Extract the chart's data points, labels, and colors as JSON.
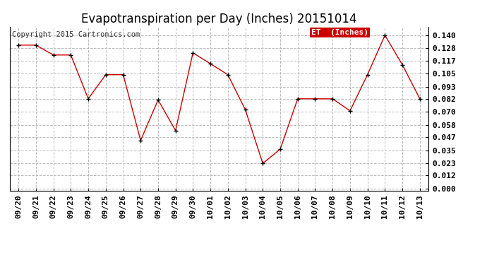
{
  "title": "Evapotranspiration per Day (Inches) 20151014",
  "copyright": "Copyright 2015 Cartronics.com",
  "legend_label": "ET  (Inches)",
  "dates": [
    "09/20",
    "09/21",
    "09/22",
    "09/23",
    "09/24",
    "09/25",
    "09/26",
    "09/27",
    "09/28",
    "09/29",
    "09/30",
    "10/01",
    "10/02",
    "10/03",
    "10/04",
    "10/05",
    "10/06",
    "10/07",
    "10/08",
    "10/09",
    "10/10",
    "10/11",
    "10/12",
    "10/13"
  ],
  "values": [
    0.131,
    0.131,
    0.122,
    0.122,
    0.082,
    0.104,
    0.104,
    0.044,
    0.081,
    0.053,
    0.124,
    0.114,
    0.104,
    0.072,
    0.023,
    0.036,
    0.082,
    0.082,
    0.082,
    0.071,
    0.104,
    0.14,
    0.113,
    0.082
  ],
  "yticks": [
    0.0,
    0.012,
    0.023,
    0.035,
    0.047,
    0.058,
    0.07,
    0.082,
    0.093,
    0.105,
    0.117,
    0.128,
    0.14
  ],
  "line_color": "#cc0000",
  "marker_color": "#000000",
  "grid_color": "#bbbbbb",
  "background_color": "#ffffff",
  "legend_bg": "#cc0000",
  "legend_text_color": "#ffffff",
  "title_fontsize": 12,
  "tick_fontsize": 8,
  "copyright_fontsize": 7.5,
  "ylim_min": -0.002,
  "ylim_max": 0.148
}
